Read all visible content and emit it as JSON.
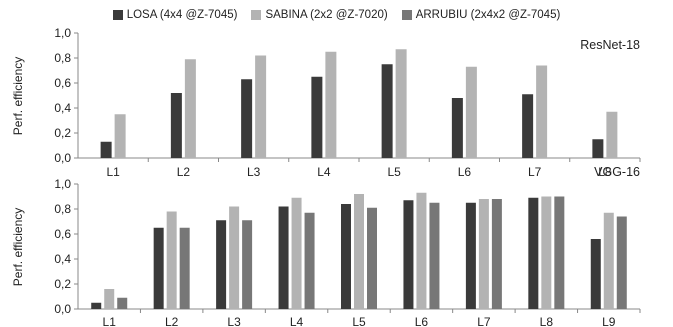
{
  "chart_data": [
    {
      "type": "bar",
      "title": "ResNet-18",
      "ylabel": "Perf. efficiency",
      "ylim": [
        0,
        1.0
      ],
      "yticks": [
        "0,0",
        "0,2",
        "0,4",
        "0,6",
        "0,8",
        "1,0"
      ],
      "grid": false,
      "legend": "top",
      "categories": [
        "L1",
        "L2",
        "L3",
        "L4",
        "L5",
        "L6",
        "L7",
        "L8"
      ],
      "series": [
        {
          "name": "LOSA (4x4 @Z-7045)",
          "color": "#3a3a3a",
          "values": [
            0.13,
            0.52,
            0.63,
            0.65,
            0.75,
            0.48,
            0.51,
            0.15
          ]
        },
        {
          "name": "SABINA (2x2 @Z-7020)",
          "color": "#b3b3b3",
          "values": [
            0.35,
            0.79,
            0.82,
            0.85,
            0.87,
            0.73,
            0.74,
            0.37
          ]
        }
      ]
    },
    {
      "type": "bar",
      "title": "VGG-16",
      "ylabel": "Perf. efficiency",
      "ylim": [
        0,
        1.0
      ],
      "yticks": [
        "0,0",
        "0,2",
        "0,4",
        "0,6",
        "0,8",
        "1,0"
      ],
      "grid": false,
      "categories": [
        "L1",
        "L2",
        "L3",
        "L4",
        "L5",
        "L6",
        "L7",
        "L8",
        "L9"
      ],
      "series": [
        {
          "name": "LOSA (4x4 @Z-7045)",
          "color": "#3a3a3a",
          "values": [
            0.05,
            0.65,
            0.71,
            0.82,
            0.84,
            0.87,
            0.85,
            0.89,
            0.56
          ]
        },
        {
          "name": "SABINA (2x2 @Z-7020)",
          "color": "#b3b3b3",
          "values": [
            0.16,
            0.78,
            0.82,
            0.89,
            0.92,
            0.93,
            0.88,
            0.9,
            0.77
          ]
        },
        {
          "name": "ARRUBIU (2x4x2 @Z-7045)",
          "color": "#777777",
          "values": [
            0.09,
            0.65,
            0.71,
            0.77,
            0.81,
            0.85,
            0.88,
            0.9,
            0.74
          ]
        }
      ]
    }
  ],
  "legend": [
    {
      "label": "LOSA (4x4 @Z-7045)",
      "color": "#3a3a3a"
    },
    {
      "label": "SABINA (2x2 @Z-7020)",
      "color": "#b3b3b3"
    },
    {
      "label": "ARRUBIU (2x4x2 @Z-7045)",
      "color": "#777777"
    }
  ]
}
